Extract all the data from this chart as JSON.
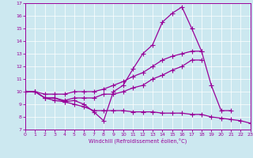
{
  "xlabel": "Windchill (Refroidissement éolien,°C)",
  "xlim": [
    0,
    23
  ],
  "ylim": [
    7,
    17
  ],
  "yticks": [
    7,
    8,
    9,
    10,
    11,
    12,
    13,
    14,
    15,
    16,
    17
  ],
  "xticks": [
    0,
    1,
    2,
    3,
    4,
    5,
    6,
    7,
    8,
    9,
    10,
    11,
    12,
    13,
    14,
    15,
    16,
    17,
    18,
    19,
    20,
    21,
    22,
    23
  ],
  "bg_color": "#cce8f0",
  "line_color": "#990099",
  "marker": "+",
  "markersize": 4,
  "linewidth": 0.9,
  "line1_x": [
    0,
    1,
    2,
    3,
    4,
    5,
    6,
    7,
    8,
    9,
    10,
    11,
    12,
    13,
    14,
    15,
    16,
    17,
    18,
    19,
    20,
    21
  ],
  "line1_y": [
    10,
    10,
    9.5,
    9.5,
    9.2,
    9.3,
    9.0,
    8.4,
    7.7,
    10.0,
    10.5,
    11.8,
    13.0,
    13.7,
    15.5,
    16.2,
    16.7,
    15.0,
    13.2,
    10.5,
    8.5,
    8.5
  ],
  "line2_x": [
    0,
    1,
    2,
    3,
    4,
    5,
    6,
    7,
    8,
    9,
    10,
    11,
    12,
    13,
    14,
    15,
    16,
    17,
    18
  ],
  "line2_y": [
    10,
    10,
    9.8,
    9.8,
    9.8,
    10.0,
    10.0,
    10.0,
    10.2,
    10.5,
    10.8,
    11.2,
    11.5,
    12.0,
    12.5,
    12.8,
    13.0,
    13.2,
    13.2
  ],
  "line3_x": [
    0,
    1,
    2,
    3,
    4,
    5,
    6,
    7,
    8,
    9,
    10,
    11,
    12,
    13,
    14,
    15,
    16,
    17,
    18
  ],
  "line3_y": [
    10,
    10,
    9.5,
    9.5,
    9.3,
    9.5,
    9.5,
    9.5,
    9.8,
    9.8,
    10.0,
    10.3,
    10.5,
    11.0,
    11.3,
    11.7,
    12.0,
    12.5,
    12.5
  ],
  "line4_x": [
    0,
    1,
    2,
    3,
    4,
    5,
    6,
    7,
    8,
    9,
    10,
    11,
    12,
    13,
    14,
    15,
    16,
    17,
    18,
    19,
    20,
    21,
    22,
    23
  ],
  "line4_y": [
    10,
    10,
    9.5,
    9.3,
    9.2,
    9.0,
    8.8,
    8.5,
    8.5,
    8.5,
    8.5,
    8.4,
    8.4,
    8.4,
    8.3,
    8.3,
    8.3,
    8.2,
    8.2,
    8.0,
    7.9,
    7.8,
    7.7,
    7.5
  ]
}
